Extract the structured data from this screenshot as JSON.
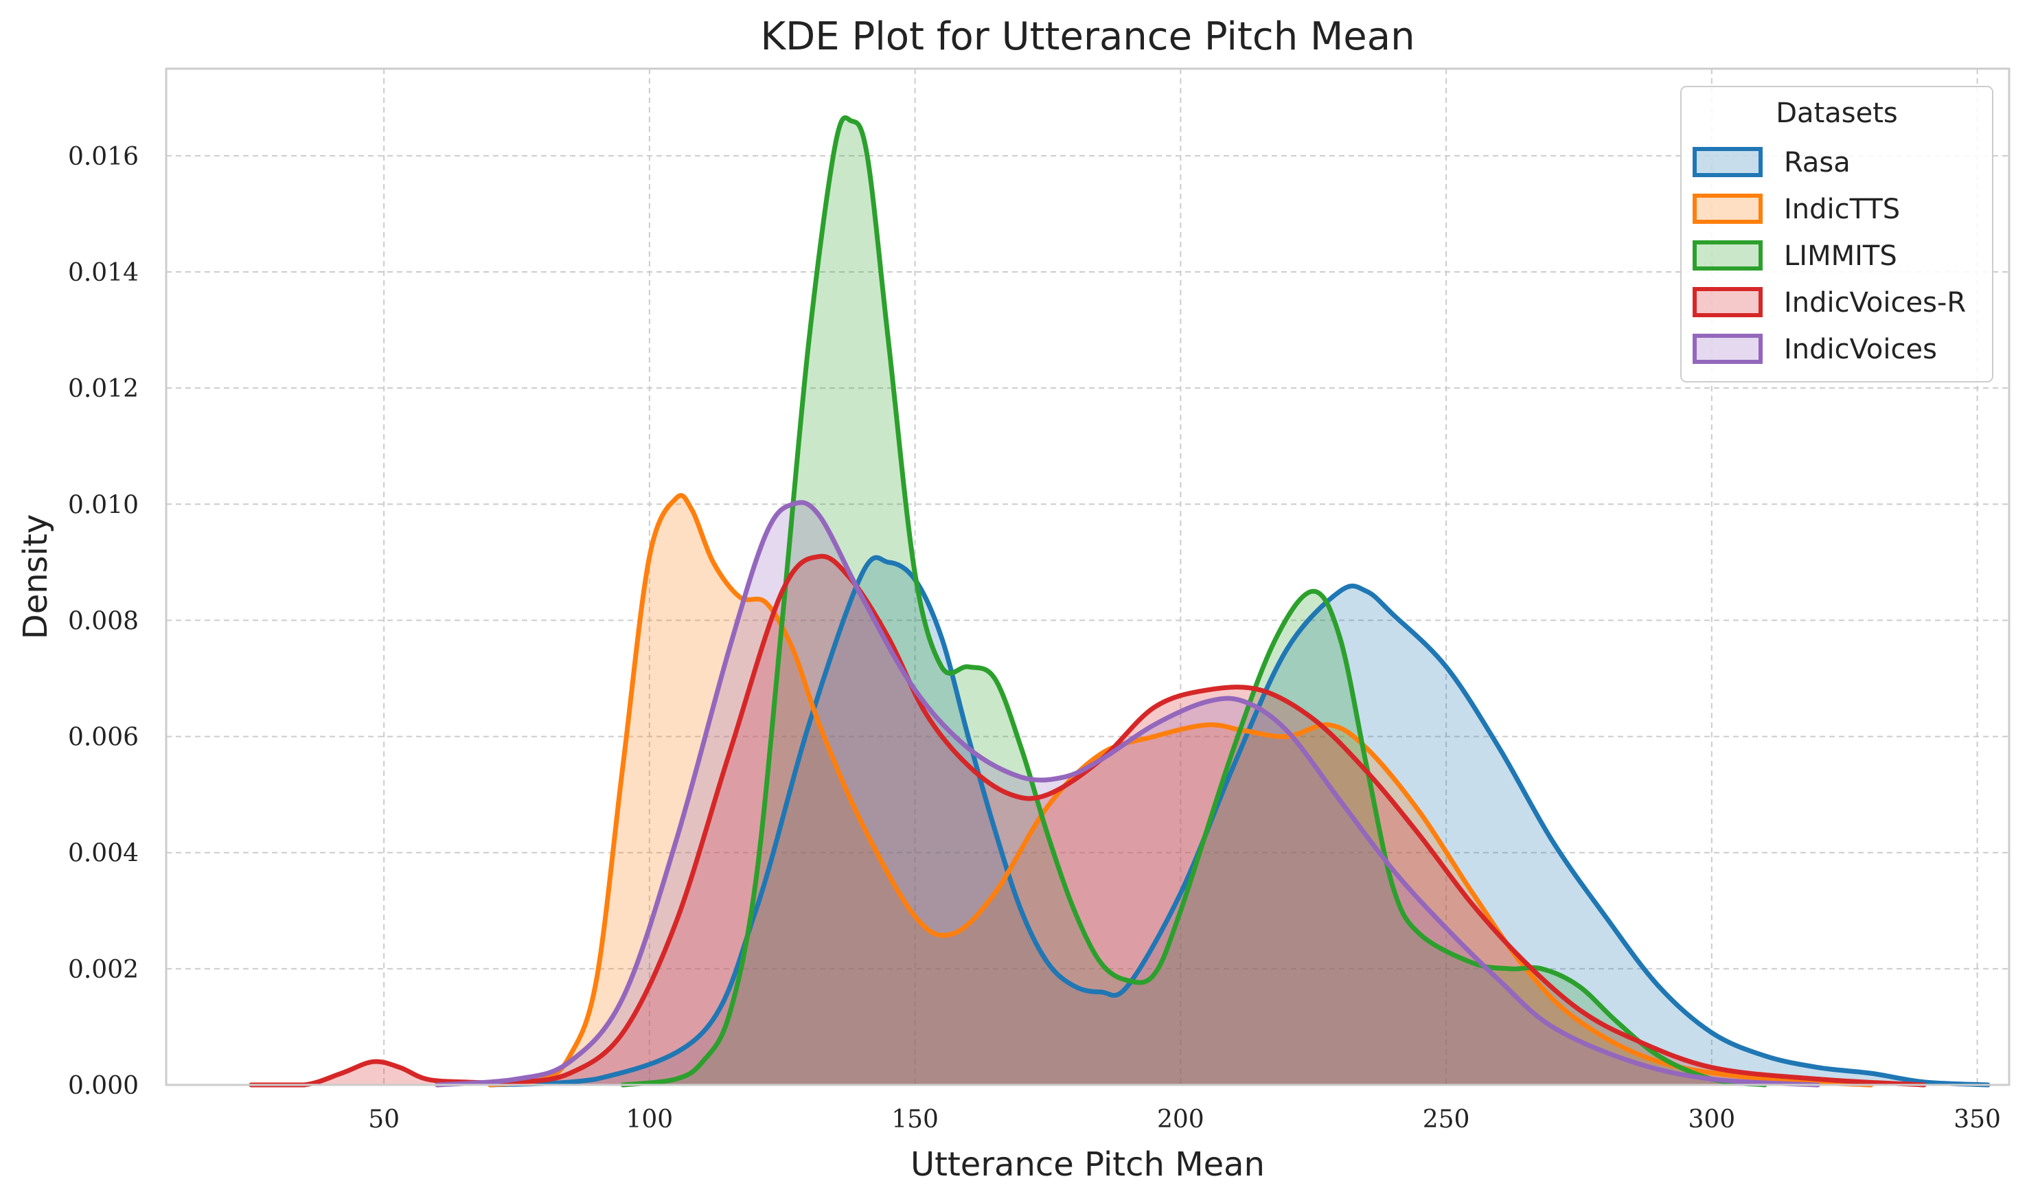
{
  "chart_data": {
    "type": "area",
    "title": "KDE Plot for Utterance Pitch Mean",
    "xlabel": "Utterance Pitch Mean",
    "ylabel": "Density",
    "xlim": [
      9,
      356
    ],
    "ylim": [
      0,
      0.0175
    ],
    "xticks": [
      50,
      100,
      150,
      200,
      250,
      300,
      350
    ],
    "yticks": [
      0.0,
      0.002,
      0.004,
      0.006,
      0.008,
      0.01,
      0.012,
      0.014,
      0.016
    ],
    "ytick_decimals": 3,
    "grid": true,
    "legend": {
      "title": "Datasets",
      "placement": "top-right"
    },
    "series": [
      {
        "name": "Rasa",
        "color": "#1f77b4",
        "points": [
          [
            70,
            0.0
          ],
          [
            90,
            0.0001
          ],
          [
            110,
            0.0009
          ],
          [
            120,
            0.003
          ],
          [
            130,
            0.0062
          ],
          [
            140,
            0.0088
          ],
          [
            145,
            0.009
          ],
          [
            150,
            0.0087
          ],
          [
            155,
            0.0077
          ],
          [
            160,
            0.006
          ],
          [
            165,
            0.0044
          ],
          [
            170,
            0.003
          ],
          [
            175,
            0.0021
          ],
          [
            180,
            0.0017
          ],
          [
            185,
            0.0016
          ],
          [
            190,
            0.0017
          ],
          [
            200,
            0.0033
          ],
          [
            210,
            0.0055
          ],
          [
            220,
            0.0075
          ],
          [
            230,
            0.0085
          ],
          [
            235,
            0.0085
          ],
          [
            240,
            0.0081
          ],
          [
            250,
            0.0072
          ],
          [
            260,
            0.0058
          ],
          [
            270,
            0.0042
          ],
          [
            280,
            0.0029
          ],
          [
            290,
            0.0017
          ],
          [
            300,
            0.0009
          ],
          [
            310,
            0.0005
          ],
          [
            320,
            0.0003
          ],
          [
            330,
            0.0002
          ],
          [
            340,
            5e-05
          ],
          [
            352,
            0.0
          ]
        ]
      },
      {
        "name": "IndicTTS",
        "color": "#ff7f0e",
        "points": [
          [
            70,
            0.0
          ],
          [
            80,
            0.0001
          ],
          [
            85,
            0.0005
          ],
          [
            90,
            0.0018
          ],
          [
            95,
            0.0055
          ],
          [
            100,
            0.0091
          ],
          [
            105,
            0.0101
          ],
          [
            108,
            0.0099
          ],
          [
            112,
            0.009
          ],
          [
            117,
            0.0084
          ],
          [
            122,
            0.0083
          ],
          [
            127,
            0.0075
          ],
          [
            132,
            0.0062
          ],
          [
            140,
            0.0045
          ],
          [
            150,
            0.0029
          ],
          [
            157,
            0.0026
          ],
          [
            165,
            0.0033
          ],
          [
            175,
            0.0048
          ],
          [
            185,
            0.0057
          ],
          [
            195,
            0.006
          ],
          [
            205,
            0.0062
          ],
          [
            212,
            0.0061
          ],
          [
            220,
            0.006
          ],
          [
            228,
            0.0062
          ],
          [
            235,
            0.0058
          ],
          [
            245,
            0.0047
          ],
          [
            255,
            0.0033
          ],
          [
            265,
            0.002
          ],
          [
            275,
            0.0011
          ],
          [
            290,
            0.0004
          ],
          [
            310,
            0.0001
          ],
          [
            330,
            0.0
          ]
        ]
      },
      {
        "name": "LIMMITS",
        "color": "#2ca02c",
        "points": [
          [
            95,
            0.0
          ],
          [
            105,
            0.0001
          ],
          [
            110,
            0.0004
          ],
          [
            115,
            0.0012
          ],
          [
            120,
            0.0035
          ],
          [
            125,
            0.008
          ],
          [
            130,
            0.0128
          ],
          [
            135,
            0.0162
          ],
          [
            138,
            0.0166
          ],
          [
            141,
            0.016
          ],
          [
            145,
            0.0128
          ],
          [
            150,
            0.0088
          ],
          [
            155,
            0.0072
          ],
          [
            160,
            0.0072
          ],
          [
            165,
            0.007
          ],
          [
            170,
            0.0058
          ],
          [
            175,
            0.0043
          ],
          [
            180,
            0.003
          ],
          [
            185,
            0.0021
          ],
          [
            190,
            0.0018
          ],
          [
            195,
            0.0019
          ],
          [
            200,
            0.003
          ],
          [
            210,
            0.0058
          ],
          [
            218,
            0.0077
          ],
          [
            225,
            0.0085
          ],
          [
            230,
            0.0077
          ],
          [
            235,
            0.0055
          ],
          [
            240,
            0.0034
          ],
          [
            245,
            0.0026
          ],
          [
            255,
            0.0021
          ],
          [
            262,
            0.002
          ],
          [
            268,
            0.002
          ],
          [
            275,
            0.0017
          ],
          [
            282,
            0.0011
          ],
          [
            290,
            0.0005
          ],
          [
            300,
            0.0001
          ],
          [
            310,
            0.0
          ]
        ]
      },
      {
        "name": "IndicVoices-R",
        "color": "#d62728",
        "points": [
          [
            25,
            0.0
          ],
          [
            35,
            0.0
          ],
          [
            42,
            0.0002
          ],
          [
            48,
            0.0004
          ],
          [
            53,
            0.0003
          ],
          [
            58,
            0.0001
          ],
          [
            65,
            5e-05
          ],
          [
            75,
            5e-05
          ],
          [
            85,
            0.0002
          ],
          [
            95,
            0.0009
          ],
          [
            105,
            0.0028
          ],
          [
            115,
            0.0057
          ],
          [
            125,
            0.0085
          ],
          [
            132,
            0.0091
          ],
          [
            138,
            0.0087
          ],
          [
            145,
            0.0077
          ],
          [
            152,
            0.0064
          ],
          [
            160,
            0.0055
          ],
          [
            168,
            0.005
          ],
          [
            175,
            0.005
          ],
          [
            185,
            0.0056
          ],
          [
            195,
            0.0065
          ],
          [
            205,
            0.0068
          ],
          [
            215,
            0.0068
          ],
          [
            225,
            0.0063
          ],
          [
            235,
            0.0054
          ],
          [
            245,
            0.0043
          ],
          [
            255,
            0.0031
          ],
          [
            265,
            0.0021
          ],
          [
            275,
            0.0013
          ],
          [
            285,
            0.0008
          ],
          [
            300,
            0.0003
          ],
          [
            320,
            0.0001
          ],
          [
            340,
            0.0
          ]
        ]
      },
      {
        "name": "IndicVoices",
        "color": "#9467bd",
        "points": [
          [
            60,
            0.0
          ],
          [
            75,
            0.0001
          ],
          [
            85,
            0.0004
          ],
          [
            95,
            0.0015
          ],
          [
            105,
            0.0042
          ],
          [
            115,
            0.0075
          ],
          [
            122,
            0.0095
          ],
          [
            127,
            0.01
          ],
          [
            132,
            0.0098
          ],
          [
            140,
            0.0084
          ],
          [
            150,
            0.0068
          ],
          [
            160,
            0.0058
          ],
          [
            170,
            0.0053
          ],
          [
            178,
            0.0053
          ],
          [
            185,
            0.0056
          ],
          [
            195,
            0.0062
          ],
          [
            205,
            0.0066
          ],
          [
            212,
            0.0066
          ],
          [
            220,
            0.0061
          ],
          [
            230,
            0.0049
          ],
          [
            240,
            0.0037
          ],
          [
            250,
            0.0027
          ],
          [
            260,
            0.0018
          ],
          [
            270,
            0.001
          ],
          [
            285,
            0.0004
          ],
          [
            300,
            0.0001
          ],
          [
            320,
            0.0
          ]
        ]
      }
    ]
  }
}
